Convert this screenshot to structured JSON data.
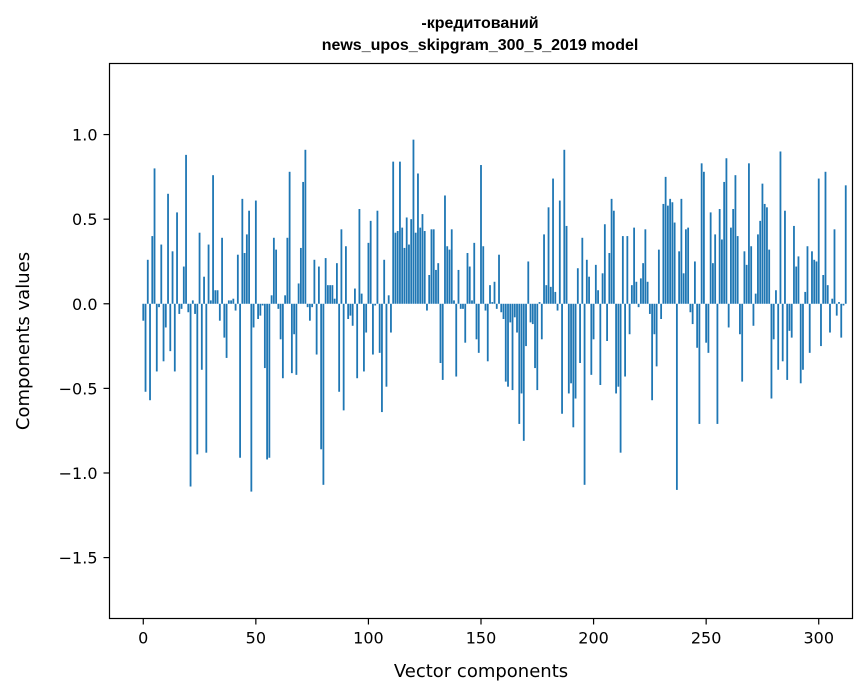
{
  "chart_data": {
    "type": "bar",
    "title_line1": "-кредитований",
    "title_line2": "news_upos_skipgram_300_5_2019 model",
    "xlabel": "Vector components",
    "ylabel": "Components values",
    "xlim": [
      -15,
      315
    ],
    "ylim": [
      -1.86,
      1.42
    ],
    "xticks": [
      0,
      50,
      100,
      150,
      200,
      250,
      300
    ],
    "xtick_labels": [
      "0",
      "50",
      "100",
      "150",
      "200",
      "250",
      "300"
    ],
    "yticks": [
      -1.5,
      -1.0,
      -0.5,
      0.0,
      0.5,
      1.0
    ],
    "ytick_labels": [
      "−1.5",
      "−1.0",
      "−0.5",
      "0.0",
      "0.5",
      "1.0"
    ],
    "bar_color": "#1f77b4",
    "values": [
      -0.1,
      -0.52,
      0.26,
      -0.57,
      0.4,
      0.8,
      -0.4,
      -0.02,
      0.35,
      -0.34,
      -0.14,
      0.65,
      -0.28,
      0.31,
      -0.4,
      0.54,
      -0.06,
      -0.03,
      0.22,
      0.88,
      -0.05,
      -1.08,
      0.02,
      -0.06,
      -0.89,
      0.42,
      -0.39,
      0.16,
      -0.88,
      0.35,
      0.02,
      0.76,
      0.08,
      0.08,
      -0.1,
      0.39,
      -0.2,
      -0.32,
      0.02,
      0.02,
      0.03,
      -0.04,
      0.29,
      -0.91,
      0.62,
      0.3,
      0.41,
      0.55,
      -1.11,
      -0.14,
      0.61,
      -0.09,
      -0.07,
      -0.01,
      -0.38,
      -0.92,
      -0.91,
      0.05,
      0.39,
      0.32,
      -0.03,
      -0.21,
      -0.44,
      0.05,
      0.39,
      0.78,
      -0.41,
      -0.18,
      -0.42,
      0.12,
      0.33,
      0.72,
      0.91,
      -0.02,
      -0.1,
      -0.02,
      0.26,
      -0.3,
      0.22,
      -0.86,
      -1.07,
      0.27,
      0.11,
      0.11,
      0.11,
      0.03,
      0.24,
      -0.52,
      0.44,
      -0.63,
      0.34,
      -0.09,
      -0.07,
      -0.13,
      0.09,
      -0.44,
      0.56,
      0.06,
      -0.4,
      -0.17,
      0.36,
      0.49,
      -0.3,
      -0.01,
      0.55,
      -0.29,
      -0.64,
      0.26,
      -0.49,
      0.05,
      -0.17,
      0.84,
      0.42,
      0.43,
      0.84,
      0.45,
      0.33,
      0.51,
      0.35,
      0.5,
      0.97,
      0.42,
      0.77,
      0.45,
      0.53,
      0.43,
      -0.04,
      0.17,
      0.44,
      0.44,
      0.2,
      0.24,
      -0.35,
      -0.45,
      0.64,
      0.34,
      0.32,
      0.44,
      0.02,
      -0.43,
      0.2,
      -0.03,
      -0.03,
      -0.23,
      0.3,
      0.22,
      0.02,
      0.36,
      -0.21,
      -0.29,
      0.82,
      0.34,
      -0.04,
      -0.34,
      0.11,
      0.01,
      0.13,
      -0.03,
      0.29,
      -0.05,
      -0.09,
      -0.46,
      -0.49,
      -0.11,
      -0.51,
      -0.08,
      -0.17,
      -0.71,
      -0.53,
      -0.81,
      -0.25,
      0.25,
      -0.11,
      -0.12,
      -0.38,
      -0.51,
      0.01,
      -0.21,
      0.41,
      0.11,
      0.57,
      0.1,
      0.74,
      0.07,
      -0.04,
      0.61,
      -0.65,
      0.91,
      0.46,
      -0.53,
      -0.47,
      -0.73,
      -0.56,
      0.21,
      -0.35,
      0.39,
      -1.07,
      0.26,
      0.16,
      -0.42,
      -0.21,
      0.23,
      0.08,
      -0.48,
      0.18,
      0.47,
      -0.22,
      0.3,
      0.62,
      0.55,
      -0.53,
      -0.49,
      -0.88,
      0.4,
      -0.43,
      0.4,
      -0.18,
      0.11,
      0.45,
      0.13,
      -0.02,
      0.15,
      0.24,
      0.44,
      0.13,
      -0.06,
      -0.57,
      -0.18,
      -0.37,
      0.32,
      -0.09,
      0.59,
      0.75,
      0.58,
      0.62,
      0.6,
      0.48,
      -1.1,
      0.31,
      0.62,
      0.18,
      0.44,
      0.45,
      -0.05,
      -0.12,
      0.25,
      -0.26,
      -0.71,
      0.83,
      0.78,
      -0.23,
      -0.29,
      0.54,
      0.24,
      0.41,
      -0.71,
      0.56,
      0.38,
      0.72,
      0.86,
      -0.14,
      0.45,
      0.56,
      0.76,
      0.4,
      -0.18,
      -0.46,
      0.31,
      0.23,
      0.83,
      0.34,
      -0.13,
      0.06,
      0.41,
      0.49,
      0.71,
      0.59,
      0.57,
      0.32,
      -0.56,
      -0.21,
      0.08,
      -0.39,
      0.9,
      -0.34,
      0.55,
      -0.45,
      -0.16,
      -0.2,
      0.46,
      0.22,
      0.28,
      -0.47,
      -0.39,
      0.07,
      0.34,
      -0.29,
      0.31,
      0.26,
      0.25,
      0.74,
      -0.25,
      0.17,
      0.78,
      0.11,
      -0.17,
      0.03,
      0.44,
      -0.07,
      0.01,
      -0.2,
      -0.01,
      0.7
    ]
  }
}
